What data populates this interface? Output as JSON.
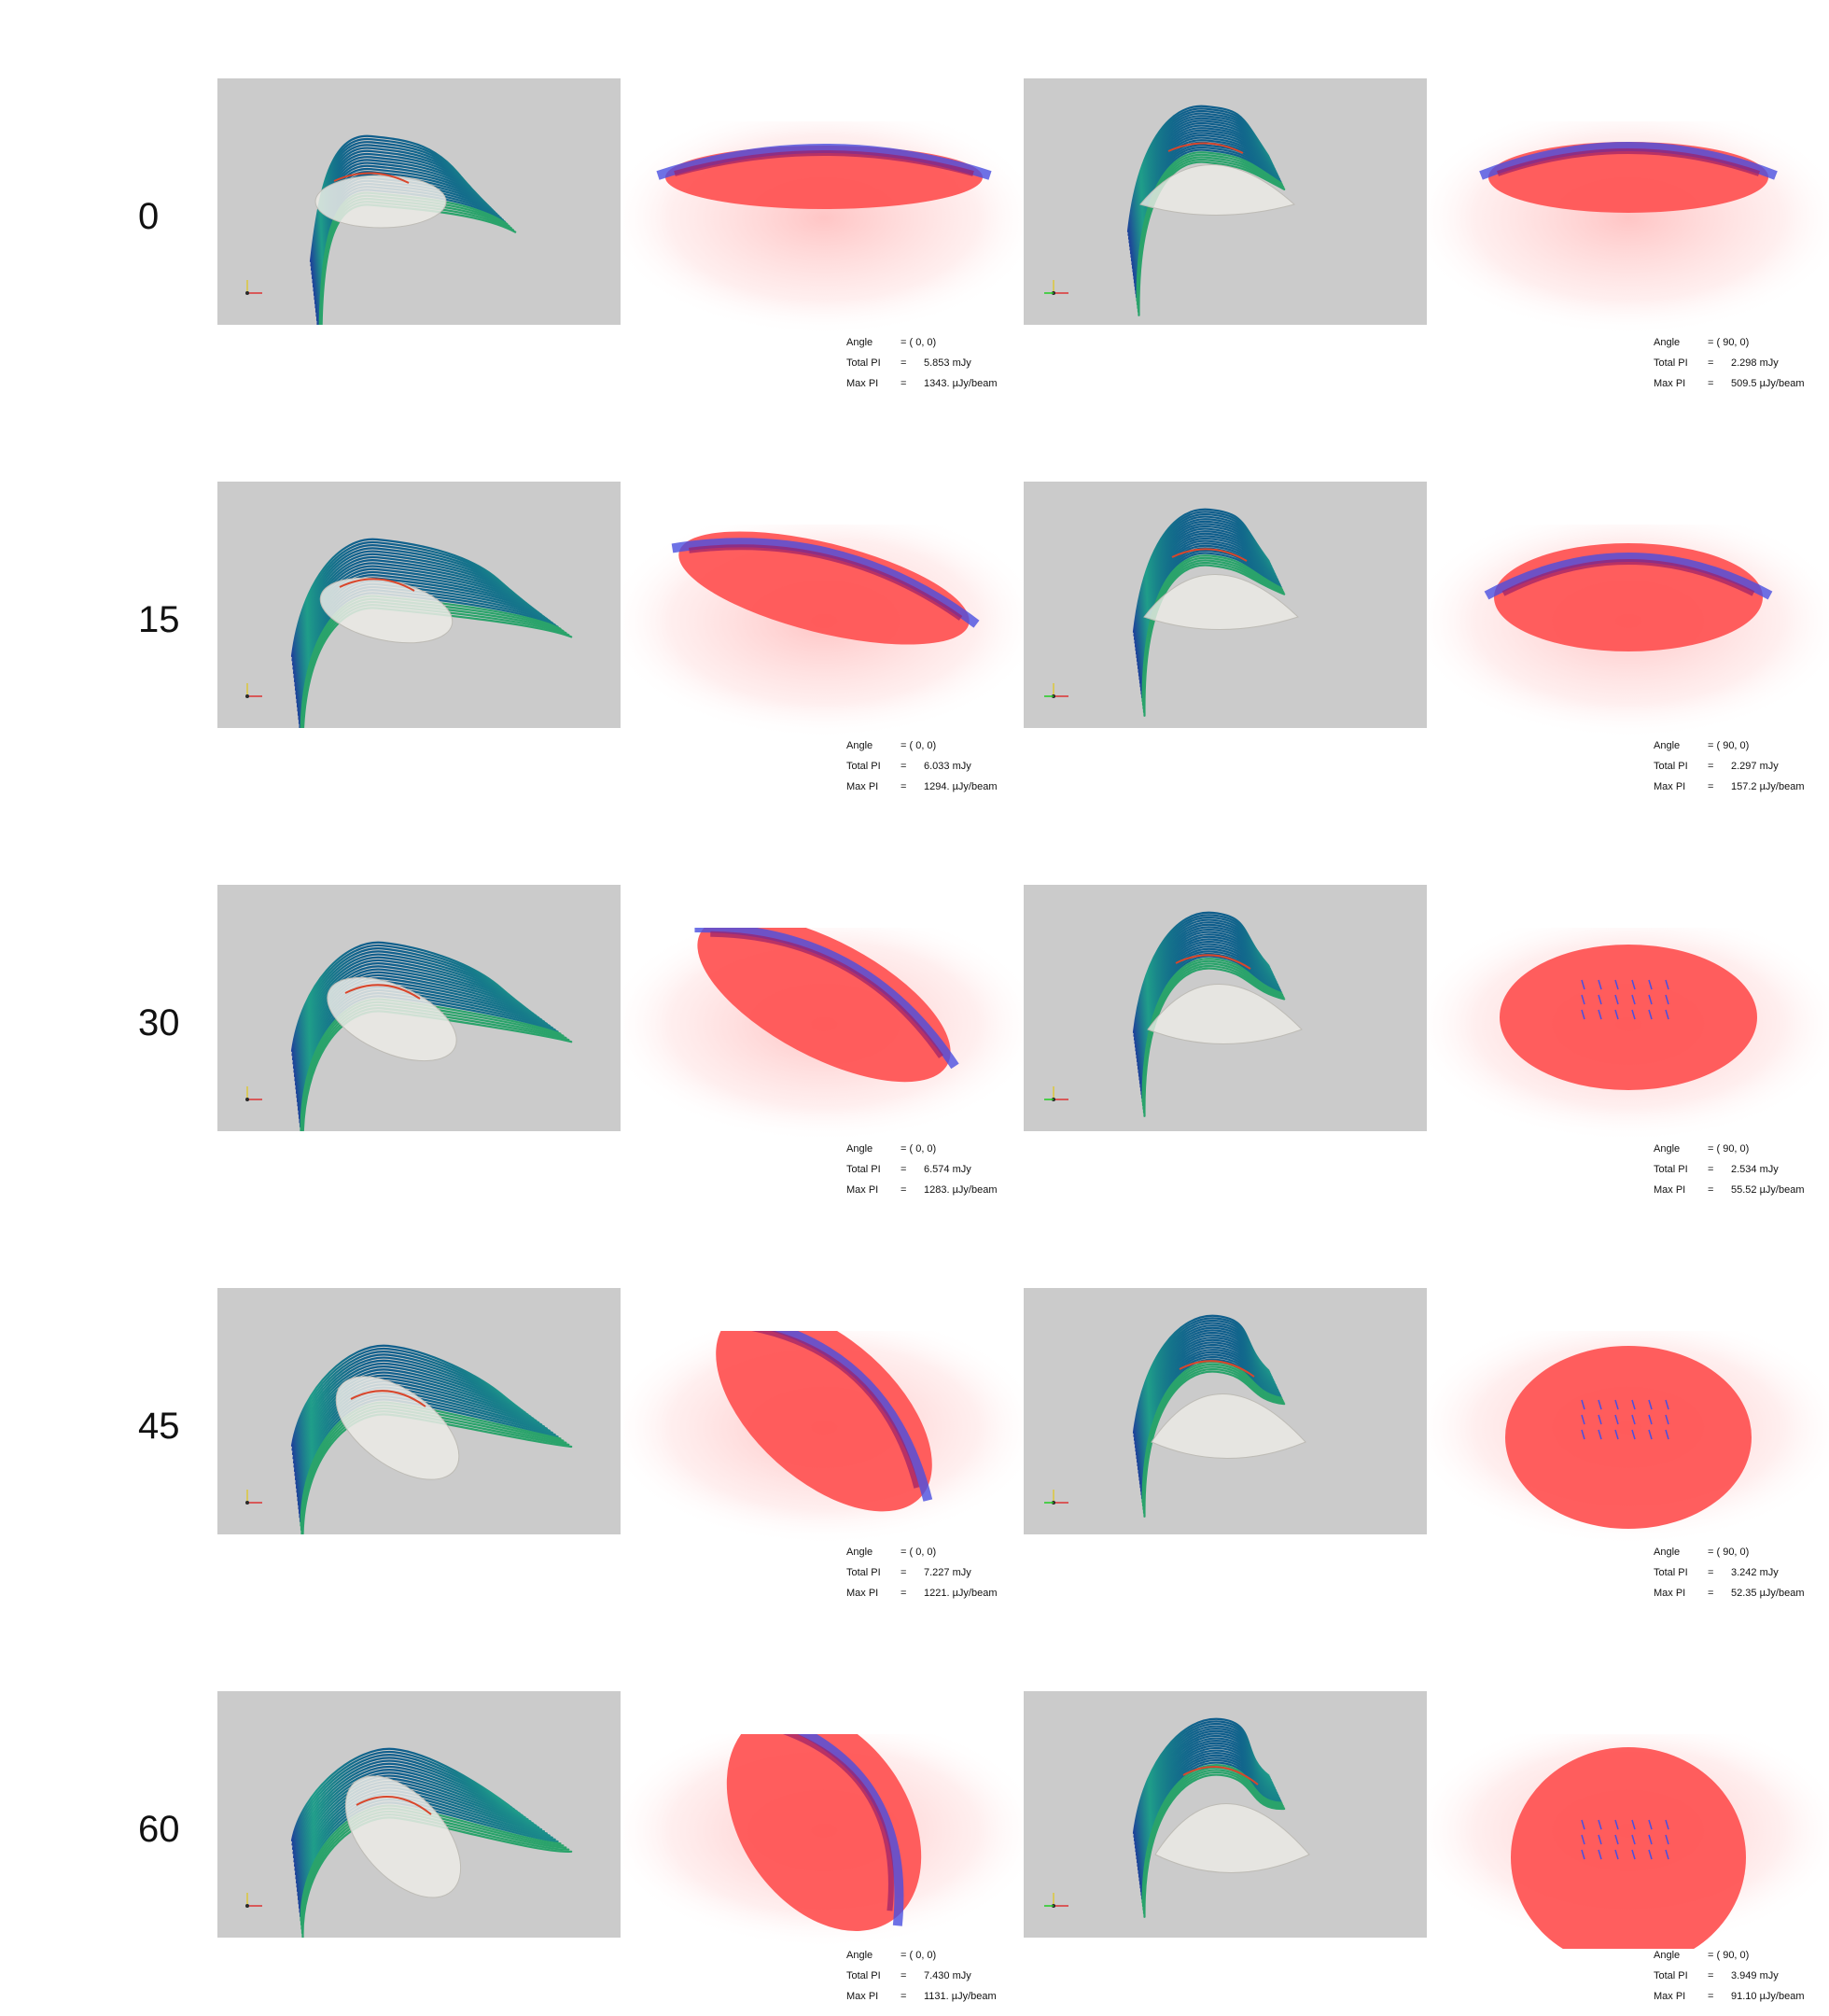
{
  "rows": [
    {
      "angle_label": "0",
      "left": {
        "angle_value": "= (  0,  0)",
        "total_pi": "5.853 mJy",
        "max_pi": "1343. µJy/beam"
      },
      "right": {
        "angle_value": "= ( 90,  0)",
        "total_pi": "2.298 mJy",
        "max_pi": "509.5 µJy/beam"
      }
    },
    {
      "angle_label": "15",
      "left": {
        "angle_value": "= (  0,  0)",
        "total_pi": "6.033 mJy",
        "max_pi": "1294. µJy/beam"
      },
      "right": {
        "angle_value": "= ( 90,  0)",
        "total_pi": "2.297 mJy",
        "max_pi": "157.2 µJy/beam"
      }
    },
    {
      "angle_label": "30",
      "left": {
        "angle_value": "= (  0,  0)",
        "total_pi": "6.574 mJy",
        "max_pi": "1283. µJy/beam"
      },
      "right": {
        "angle_value": "= ( 90,  0)",
        "total_pi": "2.534 mJy",
        "max_pi": "55.52 µJy/beam"
      }
    },
    {
      "angle_label": "45",
      "left": {
        "angle_value": "= (  0,  0)",
        "total_pi": "7.227 mJy",
        "max_pi": "1221. µJy/beam"
      },
      "right": {
        "angle_value": "= ( 90,  0)",
        "total_pi": "3.242 mJy",
        "max_pi": "52.35 µJy/beam"
      }
    },
    {
      "angle_label": "60",
      "left": {
        "angle_value": "= (  0,  0)",
        "total_pi": "7.430 mJy",
        "max_pi": "1131. µJy/beam"
      },
      "right": {
        "angle_value": "= ( 90,  0)",
        "total_pi": "3.949 mJy",
        "max_pi": "91.10 µJy/beam"
      }
    }
  ],
  "stat_labels": {
    "angle": "Angle",
    "total": "Total PI",
    "max": "Max PI",
    "equals": "="
  },
  "colors": {
    "panel_bg": "#cbcbcb",
    "emission_red": "#ff5555",
    "contour_blue": "#4a4fe0",
    "field_line_start": "#0f5d8c",
    "field_line_mid": "#1f9e89",
    "field_line_hot": "#b5de2b",
    "shell_gray": "#e8e6e1"
  },
  "icons": [
    "axes-triad-icon"
  ]
}
